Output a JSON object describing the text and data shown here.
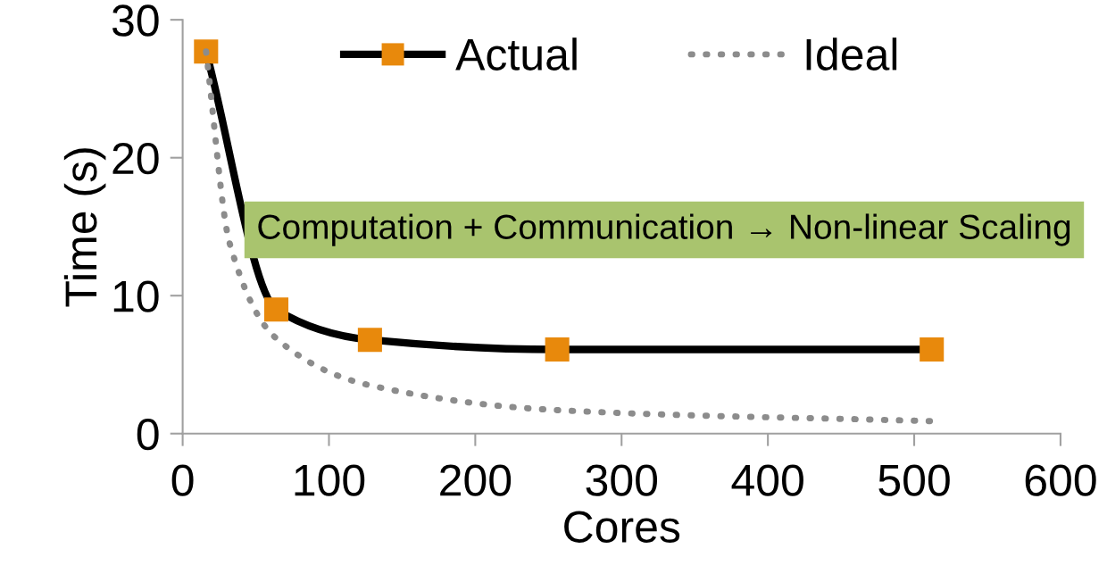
{
  "chart_data": {
    "type": "line",
    "xlabel": "Cores",
    "ylabel": "Time (s)",
    "xlim": [
      0,
      600
    ],
    "xticks": [
      0,
      100,
      200,
      300,
      400,
      500,
      600
    ],
    "ylim": [
      0,
      30
    ],
    "yticks": [
      0,
      10,
      20,
      30
    ],
    "grid": false,
    "legend": "top",
    "series": [
      {
        "name": "Actual",
        "color": "#000000",
        "colors": [
          "#e8890c",
          "#e8890c",
          "#e8890c",
          "#e8890c",
          "#e8890c"
        ],
        "marker": "square",
        "line_style": "solid",
        "x": [
          16,
          64,
          128,
          256,
          512
        ],
        "values": [
          27.7,
          9.0,
          6.8,
          6.1,
          6.1
        ]
      },
      {
        "name": "Ideal",
        "color": "#8c8c8c",
        "marker": "none",
        "line_style": "dotted",
        "x": [
          16,
          32,
          64,
          128,
          256,
          512
        ],
        "values": [
          27.7,
          13.85,
          6.9,
          3.5,
          1.7,
          0.9
        ]
      }
    ],
    "annotations": [
      "Computation + Communication → Non-linear Scaling"
    ]
  }
}
